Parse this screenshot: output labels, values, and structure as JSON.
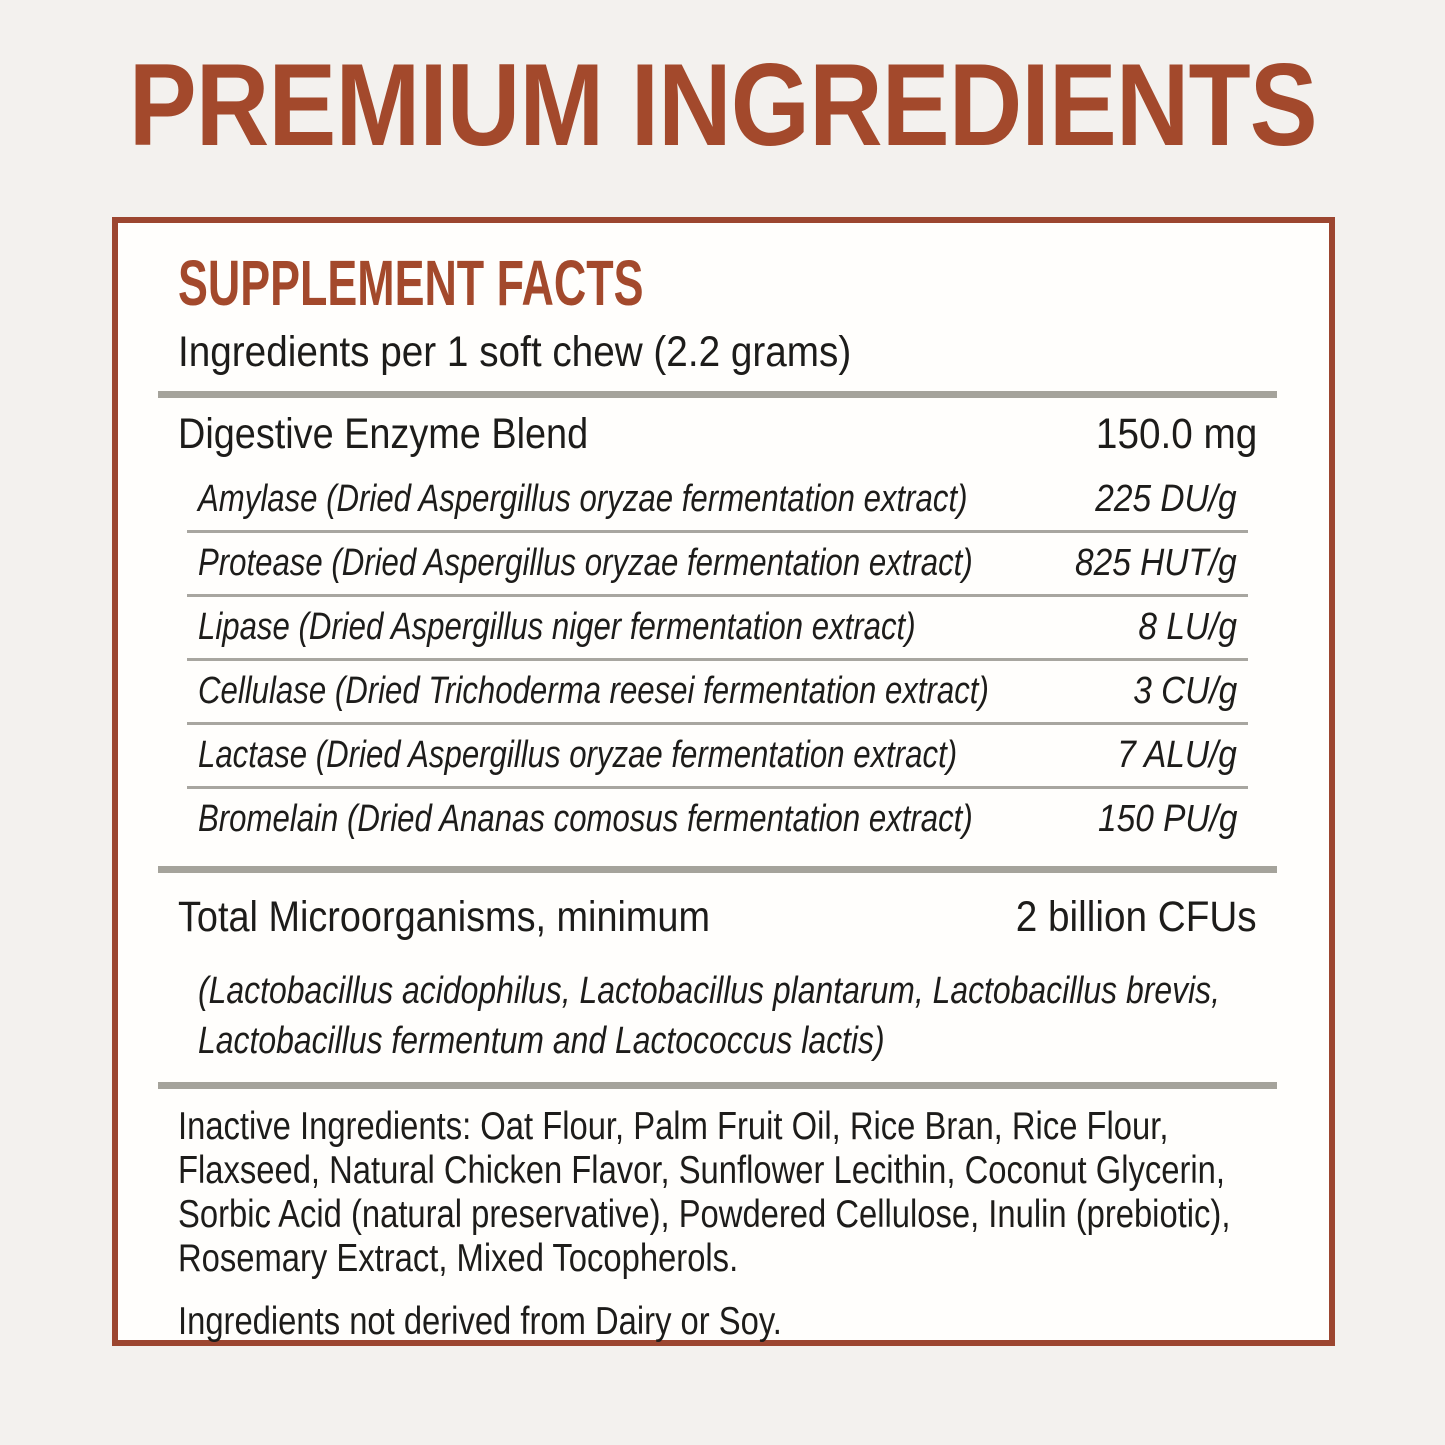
{
  "title": "PREMIUM INGREDIENTS",
  "panel": {
    "heading": "SUPPLEMENT FACTS",
    "serving": "Ingredients per 1 soft chew (2.2 grams)",
    "blend": {
      "name": "Digestive Enzyme Blend",
      "amount": "150.0 mg",
      "enzymes": [
        {
          "name": "Amylase (Dried Aspergillus oryzae fermentation extract)",
          "amount": "225 DU/g"
        },
        {
          "name": "Protease (Dried Aspergillus oryzae fermentation extract)",
          "amount": "825 HUT/g"
        },
        {
          "name": "Lipase (Dried Aspergillus niger fermentation extract)",
          "amount": "8 LU/g"
        },
        {
          "name": "Cellulase (Dried Trichoderma reesei fermentation extract)",
          "amount": "3 CU/g"
        },
        {
          "name": "Lactase (Dried Aspergillus oryzae fermentation extract)",
          "amount": "7 ALU/g"
        },
        {
          "name": "Bromelain (Dried Ananas comosus fermentation extract)",
          "amount": "150 PU/g"
        }
      ]
    },
    "microorganisms": {
      "name": "Total Microorganisms, minimum",
      "amount": "2 billion CFUs",
      "strains_lines": [
        "(Lactobacillus acidophilus, Lactobacillus plantarum, Lactobacillus brevis,",
        "Lactobacillus fermentum and Lactococcus lactis)"
      ]
    },
    "inactive_lines": [
      "Inactive Ingredients: Oat Flour, Palm Fruit Oil, Rice Bran, Rice Flour,",
      "Flaxseed, Natural Chicken Flavor, Sunflower Lecithin, Coconut Glycerin,",
      "Sorbic Acid (natural preservative), Powdered Cellulose, Inulin (prebiotic),",
      "Rosemary Extract, Mixed Tocopherols."
    ],
    "disclaimer": "Ingredients not derived from Dairy or Soy."
  },
  "colors": {
    "accent_text": "#a3492c",
    "panel_border": "#9c4630",
    "body_text": "#1d1c1a",
    "page_background": "#f3f1ee",
    "panel_background": "#fffefc",
    "divider_thick": "#a5a39b",
    "divider_thin": "#a8a6a0"
  }
}
